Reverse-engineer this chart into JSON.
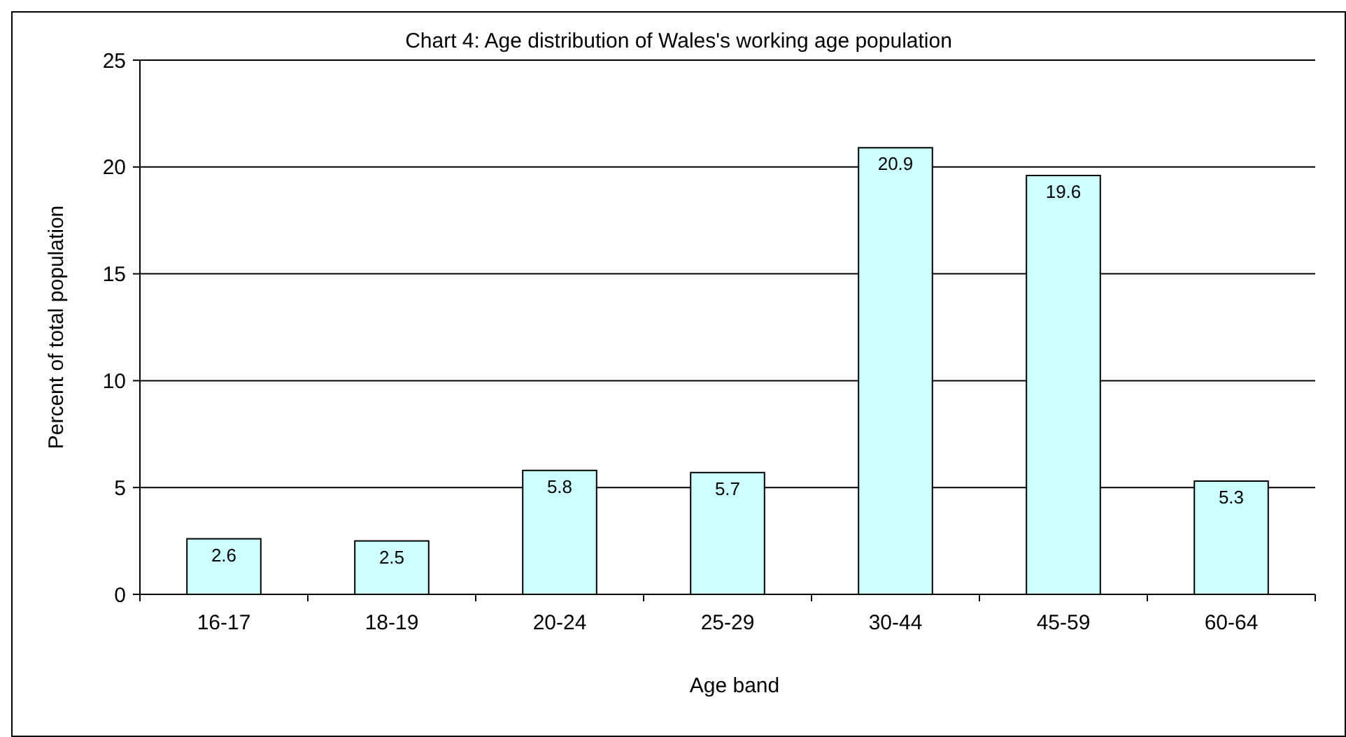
{
  "chart_data": {
    "type": "bar",
    "title": "Chart 4: Age distribution of Wales's working age population",
    "xlabel": "Age band",
    "ylabel": "Percent of total population",
    "categories": [
      "16-17",
      "18-19",
      "20-24",
      "25-29",
      "30-44",
      "45-59",
      "60-64"
    ],
    "values": [
      2.6,
      2.5,
      5.8,
      5.7,
      20.9,
      19.6,
      5.3
    ],
    "color": "#ccffff",
    "ylim": [
      0,
      25
    ],
    "yticks": [
      0,
      5,
      10,
      15,
      20,
      25
    ],
    "grid": "y",
    "data_labels": true
  }
}
